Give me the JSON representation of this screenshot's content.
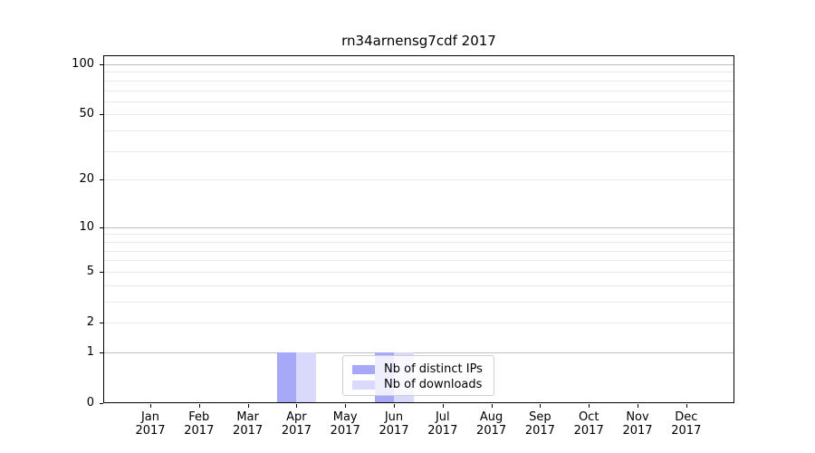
{
  "chart_data": {
    "type": "bar",
    "title": "rn34arnensg7cdf 2017",
    "categories": [
      "Jan",
      "Feb",
      "Mar",
      "Apr",
      "May",
      "Jun",
      "Jul",
      "Aug",
      "Sep",
      "Oct",
      "Nov",
      "Dec"
    ],
    "year": "2017",
    "series": [
      {
        "name": "Nb of distinct IPs",
        "color": "#a8a8f8",
        "values": [
          0,
          0,
          0,
          1,
          0,
          1,
          0,
          0,
          0,
          0,
          0,
          0
        ]
      },
      {
        "name": "Nb of downloads",
        "color": "#d9d9fb",
        "values": [
          0,
          0,
          0,
          1,
          0,
          1,
          0,
          0,
          0,
          0,
          0,
          0
        ]
      }
    ],
    "y_scale": "log1p",
    "ylim": [
      0,
      113
    ],
    "y_ticks": [
      0,
      1,
      2,
      5,
      10,
      20,
      50,
      100
    ],
    "y_major_gridlines": [
      1,
      10,
      100
    ],
    "y_minor_gridlines": [
      2,
      3,
      4,
      5,
      6,
      7,
      8,
      9,
      20,
      30,
      40,
      50,
      60,
      70,
      80,
      90
    ],
    "grid_major_color": "#bdbdbd",
    "grid_minor_color": "#e9e9e9",
    "legend_position": "lower center",
    "xlabel": "",
    "ylabel": ""
  }
}
